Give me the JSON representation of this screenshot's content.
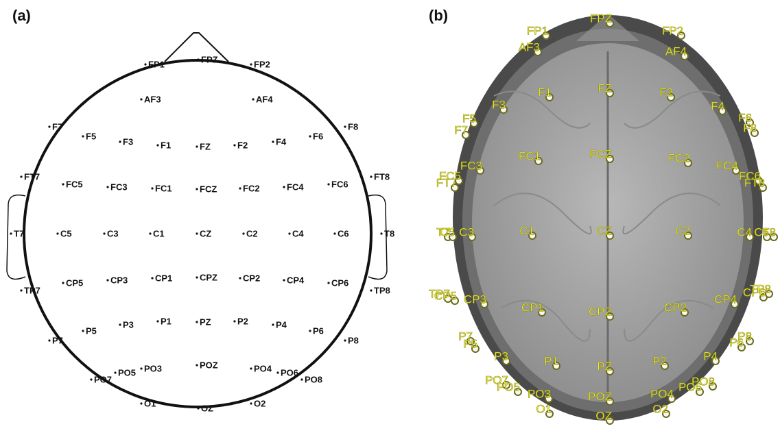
{
  "panels": [
    {
      "label": "(a)",
      "electrodes": [
        "FP1",
        "FPZ",
        "FP2",
        "AF3",
        "AF4",
        "F7",
        "F5",
        "F3",
        "F1",
        "FZ",
        "F2",
        "F4",
        "F6",
        "F8",
        "FT7",
        "FC5",
        "FC3",
        "FC1",
        "FCZ",
        "FC2",
        "FC4",
        "FC6",
        "FT8",
        "T7",
        "C5",
        "C3",
        "C1",
        "CZ",
        "C2",
        "C4",
        "C6",
        "T8",
        "TP7",
        "CP5",
        "CP3",
        "CP1",
        "CPZ",
        "CP2",
        "CP4",
        "CP6",
        "TP8",
        "P7",
        "P5",
        "P3",
        "P1",
        "PZ",
        "P2",
        "P4",
        "P6",
        "P8",
        "PO7",
        "PO5",
        "PO3",
        "POZ",
        "PO4",
        "PO6",
        "PO8",
        "O1",
        "OZ",
        "O2"
      ]
    },
    {
      "label": "(b)",
      "electrodes": [
        "FP1",
        "FPZ",
        "FP2",
        "AF3",
        "AF4",
        "F7",
        "F5",
        "F3",
        "F1",
        "FZ",
        "F2",
        "F4",
        "F6",
        "F8",
        "FT7",
        "FC5",
        "FC3",
        "FC1",
        "FCZ",
        "FC2",
        "FC4",
        "FC6",
        "FT8",
        "T7",
        "C5",
        "C3",
        "C1",
        "CZ",
        "C2",
        "C4",
        "C6",
        "T8",
        "TP7",
        "CP5",
        "CP3",
        "CP1",
        "CPZ",
        "CP2",
        "CP4",
        "CP6",
        "TP8",
        "P7",
        "P5",
        "P3",
        "P1",
        "PZ",
        "P2",
        "P4",
        "P6",
        "P8",
        "PO7",
        "PO5",
        "PO3",
        "POZ",
        "PO4",
        "PO6",
        "PO8",
        "O1",
        "OZ",
        "O2"
      ]
    }
  ]
}
